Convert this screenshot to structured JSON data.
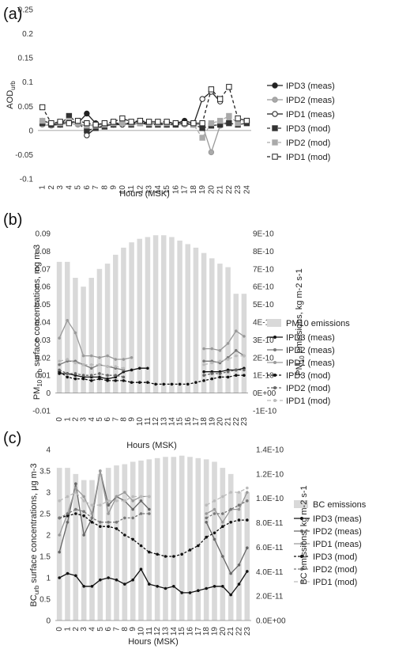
{
  "panels": {
    "a": {
      "label": "(a)"
    },
    "b": {
      "label": "(b)"
    },
    "c": {
      "label": "(c)"
    }
  },
  "chart_data": [
    {
      "type": "line",
      "panel": "(a)",
      "xlabel": "Hours (MSK)",
      "ylabel_main": "AOD",
      "ylabel_sub": "urb",
      "ylim": [
        -0.1,
        0.25
      ],
      "yticks": [
        "-0.1",
        "-0.05",
        "0",
        "0.05",
        "0.1",
        "0.15",
        "0.2",
        "0.25"
      ],
      "categories": [
        "1",
        "2",
        "3",
        "4",
        "5",
        "6",
        "7",
        "8",
        "9",
        "10",
        "11",
        "12",
        "13",
        "14",
        "15",
        "16",
        "17",
        "18",
        "19",
        "20",
        "21",
        "22",
        "23",
        "24"
      ],
      "legend_position": "right",
      "series": [
        {
          "name": "IPD3 (meas)",
          "style": "solid-filled-circle",
          "color": "#222222",
          "values": [
            0.02,
            0.015,
            0.012,
            0.02,
            0.015,
            0.035,
            0.015,
            0.01,
            0.015,
            0.015,
            0.015,
            0.02,
            0.015,
            0.015,
            0.015,
            0.015,
            0.02,
            0.015,
            null,
            null,
            null,
            null,
            null,
            null
          ]
        },
        {
          "name": "IPD2 (meas)",
          "style": "solid-grey-circle",
          "color": "#999999",
          "values": [
            0.012,
            0.01,
            0.012,
            0.015,
            0.012,
            0.01,
            0.012,
            0.012,
            0.012,
            0.015,
            0.012,
            0.015,
            0.012,
            0.015,
            0.012,
            0.012,
            0.012,
            0.012,
            0.012,
            -0.045,
            0.01,
            0.02,
            null,
            null
          ]
        },
        {
          "name": "IPD1 (meas)",
          "style": "solid-open-circle",
          "color": "#222222",
          "values": [
            null,
            null,
            null,
            null,
            null,
            -0.01,
            0.005,
            0.01,
            0.012,
            0.012,
            0.015,
            0.015,
            0.015,
            0.015,
            0.015,
            0.015,
            0.015,
            0.012,
            0.065,
            0.08,
            0.06,
            null,
            null,
            null
          ]
        },
        {
          "name": "IPD3 (mod)",
          "style": "dashed-black-square",
          "color": "#333333",
          "values": [
            0.015,
            0.012,
            0.012,
            0.03,
            0.015,
            0.0,
            0.005,
            0.008,
            0.012,
            0.015,
            0.012,
            0.015,
            0.012,
            0.012,
            0.012,
            0.012,
            0.015,
            0.012,
            0.005,
            0.01,
            0.012,
            0.015,
            0.012,
            0.015
          ]
        },
        {
          "name": "IPD2 (mod)",
          "style": "dashed-grey-square",
          "color": "#aaaaaa",
          "values": [
            0.02,
            0.015,
            0.015,
            0.02,
            0.015,
            0.01,
            0.01,
            0.012,
            0.015,
            0.015,
            0.015,
            0.015,
            0.015,
            0.015,
            0.015,
            0.015,
            0.015,
            0.012,
            -0.015,
            0.015,
            0.02,
            0.03,
            0.015,
            0.02
          ]
        },
        {
          "name": "IPD1 (mod)",
          "style": "dashed-open-square",
          "color": "#222222",
          "values": [
            0.048,
            0.015,
            0.018,
            0.015,
            0.02,
            0.015,
            0.012,
            0.015,
            0.018,
            0.025,
            0.018,
            0.02,
            0.018,
            0.018,
            0.018,
            0.015,
            0.015,
            0.015,
            0.015,
            0.085,
            0.065,
            0.09,
            0.025,
            0.02
          ]
        }
      ]
    },
    {
      "type": "bar+line",
      "panel": "(b)",
      "xlabel": "Hours (MSK)",
      "ylabel_left": "PM10 urb surface concentrations, mg m-3",
      "ylabel_right": "PM10 emissions, kg m-2 s-1",
      "ylim": [
        -0.01,
        0.09
      ],
      "yticks": [
        "-0.01",
        "0",
        "0.01",
        "0.02",
        "0.03",
        "0.04",
        "0.05",
        "0.06",
        "0.07",
        "0.08",
        "0.09"
      ],
      "y2lim": [
        -1e-10,
        9e-10
      ],
      "y2ticks": [
        "-1E-10",
        "0E+00",
        "1E-10",
        "2E-10",
        "3E-10",
        "4E-10",
        "5E-10",
        "6E-10",
        "7E-10",
        "8E-10",
        "9E-10"
      ],
      "categories": [
        "0",
        "1",
        "2",
        "3",
        "4",
        "5",
        "6",
        "7",
        "8",
        "9",
        "10",
        "11",
        "12",
        "13",
        "14",
        "15",
        "16",
        "17",
        "18",
        "19",
        "20",
        "21",
        "22",
        "23"
      ],
      "legend_position": "right",
      "bars": {
        "name": "PM10 emissions",
        "color": "#d9d9d9",
        "values": [
          7.4e-10,
          7.4e-10,
          6.5e-10,
          6e-10,
          6.5e-10,
          7e-10,
          7.3e-10,
          7.8e-10,
          8.2e-10,
          8.5e-10,
          8.7e-10,
          8.8e-10,
          8.9e-10,
          8.9e-10,
          8.8e-10,
          8.6e-10,
          8.4e-10,
          8.2e-10,
          7.9e-10,
          7.6e-10,
          7.3e-10,
          7.1e-10,
          5.6e-10,
          5.6e-10
        ]
      },
      "series": [
        {
          "name": "IPD3 (meas)",
          "color": "#111111",
          "dash": "",
          "values": [
            0.011,
            0.011,
            0.01,
            0.009,
            0.009,
            0.009,
            0.008,
            0.009,
            0.012,
            0.013,
            0.014,
            0.014,
            null,
            null,
            null,
            null,
            null,
            null,
            0.012,
            0.012,
            0.012,
            0.013,
            0.013,
            0.014
          ]
        },
        {
          "name": "IPD2 (meas)",
          "color": "#777777",
          "dash": "",
          "values": [
            0.016,
            0.018,
            0.018,
            0.016,
            0.014,
            0.016,
            0.015,
            0.014,
            0.013,
            null,
            null,
            null,
            null,
            null,
            null,
            null,
            null,
            null,
            0.018,
            0.018,
            0.017,
            0.02,
            0.024,
            0.021
          ]
        },
        {
          "name": "IPD1 (meas)",
          "color": "#9a9a9a",
          "dash": "",
          "values": [
            0.031,
            0.041,
            0.034,
            0.021,
            0.021,
            0.02,
            0.021,
            0.019,
            0.019,
            0.02,
            null,
            null,
            null,
            null,
            null,
            null,
            null,
            null,
            0.025,
            0.025,
            0.024,
            0.028,
            0.035,
            0.032
          ]
        },
        {
          "name": "IPD3 (mod)",
          "color": "#111111",
          "dash": "3,2",
          "values": [
            0.012,
            0.009,
            0.008,
            0.008,
            0.007,
            0.008,
            0.007,
            0.007,
            0.007,
            0.006,
            0.006,
            0.006,
            0.005,
            0.005,
            0.005,
            0.005,
            0.005,
            0.006,
            0.007,
            0.008,
            0.009,
            0.009,
            0.01,
            0.01
          ]
        },
        {
          "name": "IPD2 (mod)",
          "color": "#666666",
          "dash": "3,2",
          "values": [
            0.013,
            0.011,
            0.011,
            0.01,
            0.01,
            0.011,
            0.01,
            0.01,
            0.009,
            null,
            null,
            null,
            null,
            null,
            null,
            null,
            null,
            null,
            0.01,
            0.011,
            0.011,
            0.012,
            0.013,
            0.013
          ]
        },
        {
          "name": "IPD1 (mod)",
          "color": "#bbbbbb",
          "dash": "5,3",
          "values": [
            0.018,
            0.019,
            0.017,
            0.016,
            0.016,
            0.016,
            0.015,
            0.015,
            0.014,
            null,
            null,
            null,
            null,
            null,
            null,
            null,
            null,
            null,
            0.016,
            0.017,
            0.018,
            0.019,
            0.021,
            0.021
          ]
        }
      ]
    },
    {
      "type": "bar+line",
      "panel": "(c)",
      "xlabel": "Hours (MSK)",
      "ylabel_left": "BC urb surface concentrations, μg m-3",
      "ylabel_right": "BC emissions, kg m-2 s-1",
      "ylim": [
        0,
        4
      ],
      "yticks": [
        "0",
        "0.5",
        "1",
        "1.5",
        "2",
        "2.5",
        "3",
        "3.5",
        "4"
      ],
      "y2lim": [
        0,
        1.4e-10
      ],
      "y2ticks": [
        "0.0E+00",
        "2.0E-11",
        "4.0E-11",
        "6.0E-11",
        "8.0E-11",
        "1.0E-10",
        "1.2E-10",
        "1.4E-10"
      ],
      "categories": [
        "0",
        "1",
        "2",
        "3",
        "4",
        "5",
        "6",
        "7",
        "8",
        "9",
        "10",
        "11",
        "12",
        "13",
        "14",
        "15",
        "16",
        "17",
        "18",
        "19",
        "20",
        "21",
        "22",
        "23"
      ],
      "legend_position": "right",
      "bars": {
        "name": "BC emissions",
        "color": "#d9d9d9",
        "values": [
          1.25e-10,
          1.25e-10,
          1.2e-10,
          1.15e-10,
          1.15e-10,
          1.2e-10,
          1.25e-10,
          1.27e-10,
          1.28e-10,
          1.3e-10,
          1.31e-10,
          1.32e-10,
          1.33e-10,
          1.34e-10,
          1.34e-10,
          1.35e-10,
          1.34e-10,
          1.33e-10,
          1.32e-10,
          1.3e-10,
          1.25e-10,
          1.2e-10,
          1.05e-10,
          1.05e-10
        ]
      },
      "series": [
        {
          "name": "IPD3 (meas)",
          "color": "#111111",
          "dash": "",
          "values": [
            1.0,
            1.1,
            1.05,
            0.8,
            0.8,
            0.95,
            1.0,
            0.95,
            0.85,
            0.95,
            1.2,
            0.85,
            0.8,
            0.75,
            0.8,
            0.65,
            0.65,
            0.7,
            0.75,
            0.8,
            0.8,
            0.6,
            0.85,
            1.15
          ]
        },
        {
          "name": "IPD2 (meas)",
          "color": "#666666",
          "dash": "",
          "values": [
            1.6,
            2.3,
            3.2,
            2.0,
            2.4,
            3.5,
            2.7,
            2.9,
            2.8,
            2.6,
            2.8,
            2.6,
            null,
            null,
            null,
            null,
            null,
            null,
            2.3,
            1.9,
            1.5,
            1.1,
            1.3,
            1.7
          ]
        },
        {
          "name": "IPD1 (meas)",
          "color": "#999999",
          "dash": "",
          "values": [
            2.0,
            2.5,
            3.1,
            2.9,
            2.5,
            3.5,
            2.5,
            2.9,
            3.0,
            2.8,
            2.9,
            2.9,
            null,
            null,
            null,
            null,
            null,
            null,
            2.5,
            2.6,
            2.3,
            2.6,
            2.6,
            3.0
          ]
        },
        {
          "name": "IPD3 (mod)",
          "color": "#111111",
          "dash": "3,2",
          "values": [
            2.4,
            2.45,
            2.5,
            2.45,
            2.3,
            2.2,
            2.2,
            2.15,
            2.0,
            1.9,
            1.75,
            1.6,
            1.55,
            1.5,
            1.5,
            1.55,
            1.65,
            1.75,
            1.95,
            2.05,
            2.2,
            2.3,
            2.35,
            2.35
          ]
        },
        {
          "name": "IPD2 (mod)",
          "color": "#777777",
          "dash": "3,2",
          "values": [
            2.4,
            2.5,
            2.6,
            2.55,
            2.4,
            2.3,
            2.3,
            2.3,
            2.4,
            2.4,
            2.5,
            2.5,
            null,
            null,
            null,
            null,
            null,
            null,
            2.4,
            2.5,
            2.5,
            2.6,
            2.7,
            2.8
          ]
        },
        {
          "name": "IPD1 (mod)",
          "color": "#bbbbbb",
          "dash": "5,3",
          "values": [
            2.8,
            2.9,
            3.0,
            2.8,
            2.7,
            2.7,
            2.8,
            2.8,
            2.8,
            2.9,
            2.9,
            2.9,
            null,
            null,
            null,
            null,
            null,
            null,
            2.7,
            2.8,
            2.9,
            3.0,
            3.0,
            3.1
          ]
        }
      ]
    }
  ]
}
